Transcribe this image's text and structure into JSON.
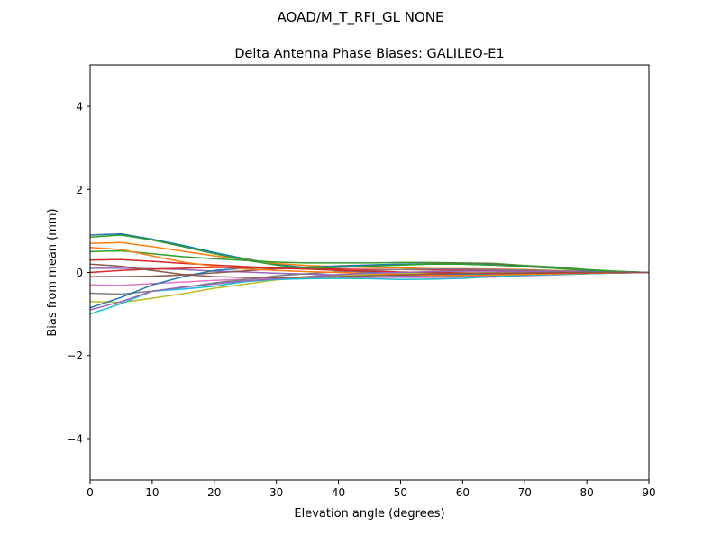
{
  "chart_data": {
    "type": "line",
    "suptitle": "AOAD/M_T_RFI_GL NONE",
    "title": "Delta Antenna Phase Biases: GALILEO-E1",
    "xlabel": "Elevation angle (degrees)",
    "ylabel": "Bias from mean (mm)",
    "xlim": [
      0,
      90
    ],
    "ylim": [
      -5,
      5
    ],
    "xticks": [
      0,
      10,
      20,
      30,
      40,
      50,
      60,
      70,
      80,
      90
    ],
    "yticks": [
      -4,
      -2,
      0,
      2,
      4
    ],
    "ytick_labels": [
      "−4",
      "−2",
      "0",
      "2",
      "4"
    ],
    "grid": false,
    "colors": [
      "#1f77b4",
      "#ff7f0e",
      "#2ca02c",
      "#d62728",
      "#9467bd",
      "#8c564b",
      "#e377c2",
      "#7f7f7f",
      "#bcbd22",
      "#17becf"
    ],
    "x": [
      0,
      5,
      10,
      15,
      20,
      25,
      30,
      35,
      40,
      45,
      50,
      55,
      60,
      65,
      70,
      75,
      80,
      85,
      90
    ],
    "series": [
      {
        "values": [
          0.9,
          0.93,
          0.8,
          0.65,
          0.48,
          0.33,
          0.2,
          0.11,
          0.05,
          0,
          -0.03,
          -0.05,
          -0.05,
          -0.05,
          -0.04,
          -0.03,
          -0.02,
          -0.01,
          0
        ]
      },
      {
        "values": [
          0.7,
          0.72,
          0.62,
          0.51,
          0.4,
          0.31,
          0.22,
          0.17,
          0.14,
          0.12,
          0.11,
          0.09,
          0.09,
          0.08,
          0.07,
          0.05,
          0.03,
          0.01,
          0
        ]
      },
      {
        "values": [
          0.5,
          0.52,
          0.45,
          0.38,
          0.33,
          0.29,
          0.25,
          0.23,
          0.23,
          0.23,
          0.24,
          0.24,
          0.23,
          0.22,
          0.17,
          0.13,
          0.07,
          0.03,
          0
        ]
      },
      {
        "values": [
          0.3,
          0.31,
          0.27,
          0.22,
          0.18,
          0.14,
          0.11,
          0.09,
          0.08,
          0.07,
          0.07,
          0.06,
          0.06,
          0.06,
          0.05,
          0.03,
          0.02,
          0.01,
          0
        ]
      },
      {
        "values": [
          0.1,
          0.1,
          0.09,
          0.07,
          0.03,
          0.01,
          -0.02,
          -0.04,
          -0.06,
          -0.07,
          -0.08,
          -0.08,
          -0.08,
          -0.08,
          -0.06,
          -0.04,
          -0.03,
          -0.01,
          0
        ]
      },
      {
        "values": [
          -0.1,
          -0.1,
          -0.09,
          -0.06,
          -0.01,
          0.04,
          0.09,
          0.12,
          0.16,
          0.18,
          0.2,
          0.21,
          0.21,
          0.2,
          0.15,
          0.11,
          0.06,
          0.02,
          0
        ]
      },
      {
        "values": [
          -0.3,
          -0.31,
          -0.27,
          -0.23,
          -0.19,
          -0.16,
          -0.14,
          -0.12,
          -0.12,
          -0.12,
          -0.12,
          -0.12,
          -0.11,
          -0.11,
          -0.08,
          -0.06,
          -0.03,
          -0.01,
          0
        ]
      },
      {
        "values": [
          -0.5,
          -0.52,
          -0.45,
          -0.36,
          -0.25,
          -0.17,
          -0.08,
          -0.03,
          0.02,
          0.05,
          0.07,
          0.08,
          0.08,
          0.07,
          0.06,
          0.04,
          0.02,
          0.01,
          0
        ]
      },
      {
        "values": [
          -0.7,
          -0.72,
          -0.62,
          -0.51,
          -0.38,
          -0.28,
          -0.18,
          -0.12,
          -0.08,
          -0.05,
          -0.03,
          -0.02,
          -0.01,
          -0.01,
          -0.01,
          -0.01,
          0,
          0,
          0
        ]
      },
      {
        "values": [
          -1.0,
          -0.75,
          -0.45,
          -0.4,
          -0.33,
          -0.22,
          -0.17,
          -0.15,
          -0.14,
          -0.15,
          -0.17,
          -0.16,
          -0.14,
          -0.1,
          -0.07,
          -0.05,
          -0.03,
          -0.01,
          0
        ]
      },
      {
        "values": [
          -0.85,
          -0.6,
          -0.3,
          -0.1,
          0.05,
          0.1,
          0.12,
          0.13,
          0.15,
          0.18,
          0.2,
          0.2,
          0.2,
          0.18,
          0.14,
          0.1,
          0.05,
          0.02,
          0
        ]
      },
      {
        "values": [
          0.6,
          0.55,
          0.4,
          0.25,
          0.15,
          0.08,
          0.05,
          0.02,
          0,
          -0.02,
          -0.05,
          -0.07,
          -0.07,
          -0.06,
          -0.05,
          -0.03,
          -0.02,
          -0.01,
          0
        ]
      },
      {
        "values": [
          0.85,
          0.9,
          0.78,
          0.62,
          0.45,
          0.3,
          0.18,
          0.1,
          0.12,
          0.15,
          0.18,
          0.2,
          0.2,
          0.18,
          0.14,
          0.1,
          0.06,
          0.02,
          0
        ]
      },
      {
        "values": [
          0,
          0.05,
          0.08,
          0.1,
          0.12,
          0.12,
          0.1,
          0.08,
          0.05,
          0.03,
          0.01,
          0,
          -0.01,
          -0.02,
          -0.02,
          -0.01,
          -0.01,
          0,
          0
        ]
      },
      {
        "values": [
          -0.9,
          -0.7,
          -0.45,
          -0.35,
          -0.28,
          -0.2,
          -0.15,
          -0.1,
          -0.05,
          -0.02,
          0,
          0.02,
          0.03,
          0.03,
          0.02,
          0.02,
          0.01,
          0,
          0
        ]
      },
      {
        "values": [
          0.2,
          0.15,
          0.05,
          -0.05,
          -0.1,
          -0.12,
          -0.12,
          -0.11,
          -0.1,
          -0.08,
          -0.06,
          -0.04,
          -0.02,
          -0.01,
          -0.01,
          0,
          0,
          0,
          0
        ]
      }
    ]
  }
}
